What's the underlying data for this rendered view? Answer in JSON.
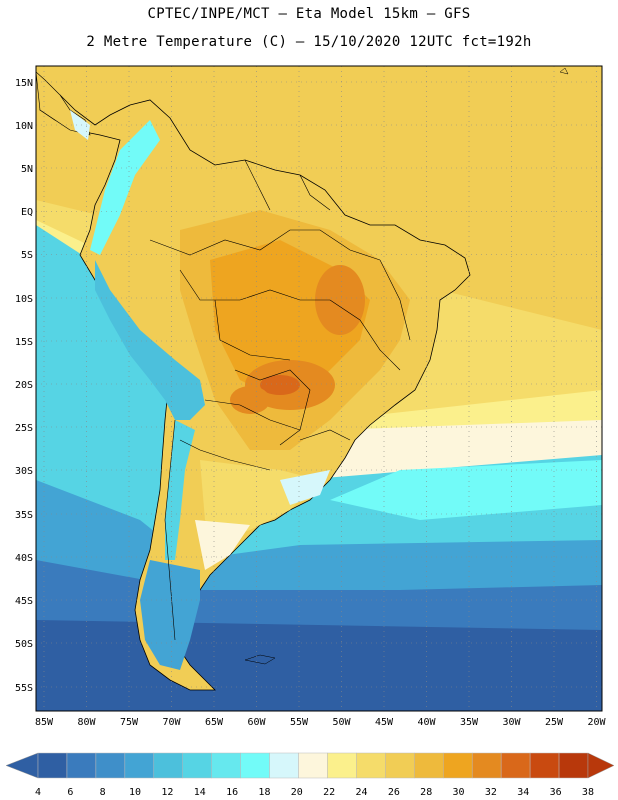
{
  "header": {
    "line1": "CPTEC/INPE/MCT –  Eta Model 15km – GFS",
    "line2": "2 Metre Temperature (C) – 15/10/2020 12UTC fct=192h"
  },
  "map": {
    "lat_labels": [
      "15N",
      "10N",
      "5N",
      "EQ",
      "5S",
      "10S",
      "15S",
      "20S",
      "25S",
      "30S",
      "35S",
      "40S",
      "45S",
      "50S",
      "55S"
    ],
    "lon_labels": [
      "85W",
      "80W",
      "75W",
      "70W",
      "65W",
      "60W",
      "55W",
      "50W",
      "45W",
      "40W",
      "35W",
      "30W",
      "25W",
      "20W"
    ]
  },
  "colorbar": {
    "labels": [
      "4",
      "6",
      "8",
      "10",
      "12",
      "14",
      "16",
      "18",
      "20",
      "22",
      "24",
      "26",
      "28",
      "30",
      "32",
      "34",
      "36",
      "38"
    ],
    "colors": [
      "#2f5fa3",
      "#3a7bbd",
      "#3f8fc9",
      "#43a4d4",
      "#4cc0dc",
      "#56d4e4",
      "#66e8ee",
      "#72fbf8",
      "#d6f7fb",
      "#fdf6dc",
      "#fbf08c",
      "#f5dc6a",
      "#f1cd55",
      "#eeba3c",
      "#eea520",
      "#e48a20",
      "#d9681a",
      "#c94a10",
      "#b8380b"
    ]
  }
}
